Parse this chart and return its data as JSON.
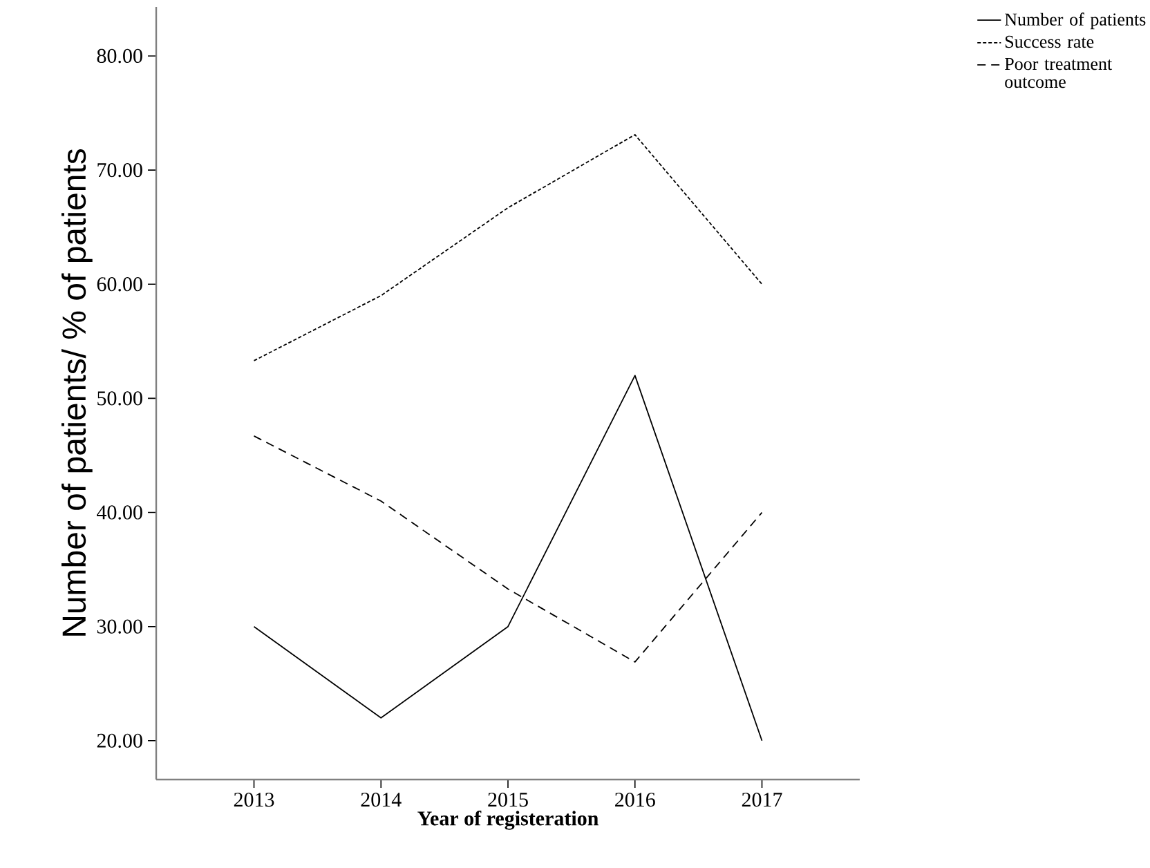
{
  "chart_data": {
    "type": "line",
    "xlabel": "Year of registeration",
    "ylabel": "Number of patients/ % of patients",
    "categories": [
      "2013",
      "2014",
      "2015",
      "2016",
      "2017"
    ],
    "series": [
      {
        "name": "Number of patients",
        "color": "#000000",
        "line_style": "solid",
        "values": [
          30,
          22,
          30,
          52,
          20
        ]
      },
      {
        "name": "Success rate",
        "color": "#000000",
        "line_style": "dotted",
        "values": [
          53.3,
          59.0,
          66.7,
          73.1,
          60.0
        ]
      },
      {
        "name": "Poor treatment outcome",
        "color": "#000000",
        "line_style": "dashed",
        "values": [
          46.7,
          41.0,
          33.3,
          26.9,
          40.0
        ]
      }
    ],
    "ylim": [
      16.6,
      84.3
    ],
    "yticks": [
      {
        "value": 20,
        "label": "20.00"
      },
      {
        "value": 30,
        "label": "30.00"
      },
      {
        "value": 40,
        "label": "40.00"
      },
      {
        "value": 50,
        "label": "50.00"
      },
      {
        "value": 60,
        "label": "60.00"
      },
      {
        "value": 70,
        "label": "70.00"
      },
      {
        "value": 80,
        "label": "80.00"
      }
    ],
    "grid": false,
    "legend": "top right",
    "marker": "none"
  }
}
